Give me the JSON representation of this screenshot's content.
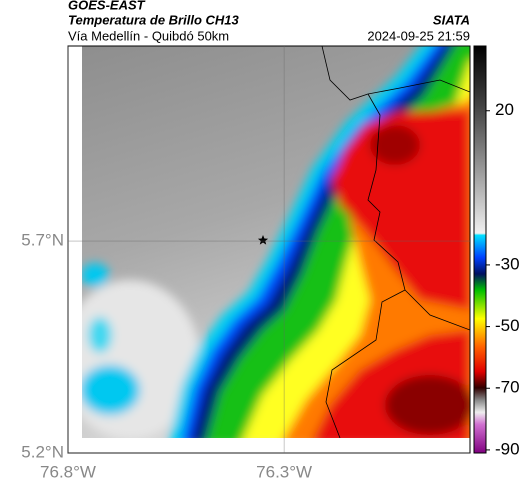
{
  "header": {
    "satellite": "GOES-EAST",
    "title": "Temperatura de Brillo CH13",
    "subtitle": "Vía Medellín - Quibdó 50km",
    "source": "SIATA",
    "timestamp": "2024-09-25 21:59"
  },
  "map": {
    "latlim": [
      5.2,
      6.16
    ],
    "lonlim": [
      -76.8,
      -75.87
    ],
    "lat_ticks": [
      {
        "value": 5.7,
        "label": "5.7°N"
      },
      {
        "value": 5.2,
        "label": "5.2°N"
      }
    ],
    "lon_ticks": [
      {
        "value": -76.8,
        "label": "76.8°W"
      },
      {
        "value": -76.3,
        "label": "76.3°W"
      }
    ],
    "grid": true
  },
  "colorbar": {
    "lim": [
      -91,
      41
    ],
    "ticks": [
      20,
      -30,
      -50,
      -70,
      -90
    ]
  }
}
